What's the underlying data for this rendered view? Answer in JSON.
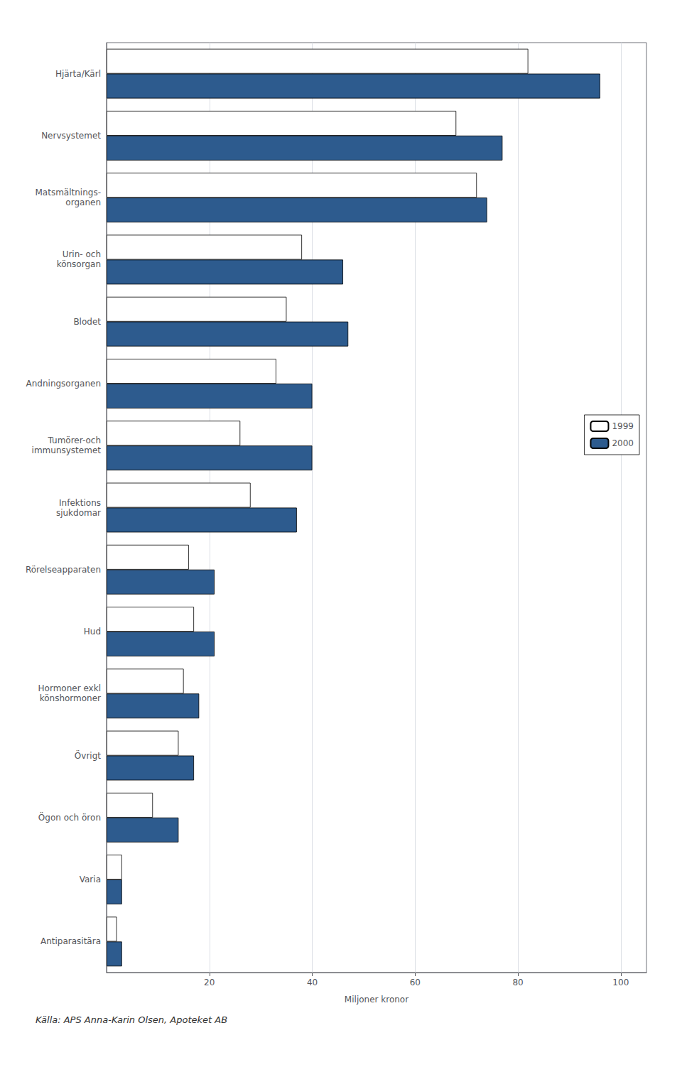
{
  "chart_data": {
    "type": "bar",
    "orientation": "horizontal",
    "categories": [
      "Hjärta/Kärl",
      "Nervsystemet",
      "Matsmältnings-\norganen",
      "Urin- och\nkönsorgan",
      "Blodet",
      "Andningsorganen",
      "Tumörer-och\nimmunsystemet",
      "Infektions\nsjukdomar",
      "Rörelseapparaten",
      "Hud",
      "Hormoner exkl\nkönshormoner",
      "Övrigt",
      "Ögon och öron",
      "Varia",
      "Antiparasitära"
    ],
    "series": [
      {
        "name": "1999",
        "color": "#ffffff",
        "values": [
          82,
          68,
          72,
          38,
          35,
          33,
          26,
          28,
          16,
          17,
          15,
          14,
          9,
          3,
          2
        ]
      },
      {
        "name": "2000",
        "color": "#2d5b8e",
        "values": [
          96,
          77,
          74,
          46,
          47,
          40,
          40,
          37,
          21,
          21,
          18,
          17,
          14,
          3,
          3
        ]
      }
    ],
    "xlabel": "Miljoner kronor",
    "xlim": [
      0,
      105
    ],
    "xticks": [
      20,
      40,
      60,
      80,
      100
    ],
    "grid": true,
    "legend": "right",
    "annotations": [
      "Källa: APS Anna-Karin Olsen, Apoteket AB"
    ]
  }
}
